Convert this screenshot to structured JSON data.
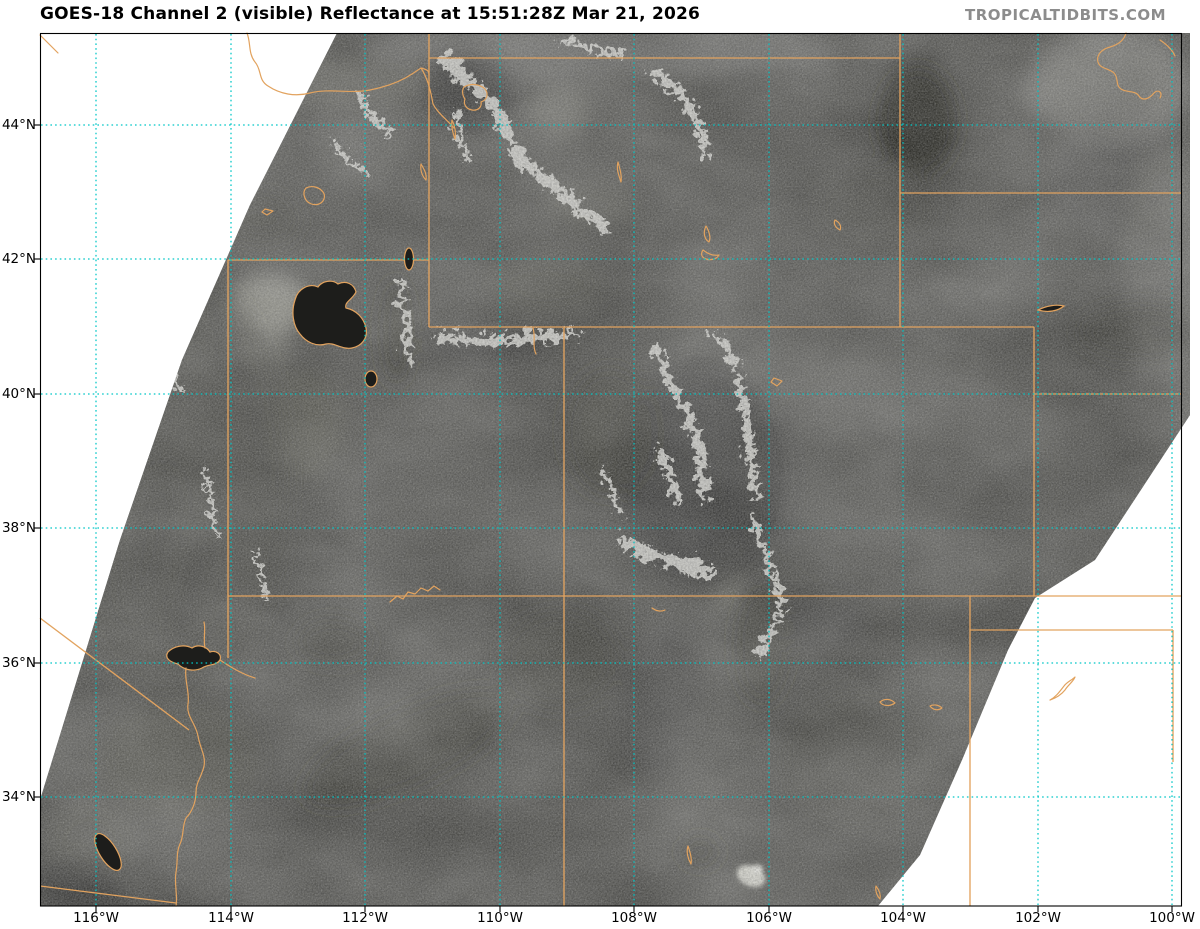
{
  "title": "GOES-18 Channel 2 (visible) Reflectance at 15:51:28Z Mar 21, 2026",
  "watermark": "TROPICALTIDBITS.COM",
  "axes": {
    "lat_ticks": [
      "44°N",
      "42°N",
      "40°N",
      "38°N",
      "36°N",
      "34°N"
    ],
    "lon_ticks": [
      "116°W",
      "114°W",
      "112°W",
      "110°W",
      "108°W",
      "106°W",
      "104°W",
      "102°W",
      "100°W"
    ]
  },
  "colors": {
    "graticule": "#00c6c6",
    "border_lines": "#e2a35f",
    "axis": "#000000",
    "watermark_color": "#8c8c8c",
    "land_dark": "#4a4a47",
    "snow": "#d6d6d2",
    "nodata": "#ffffff"
  }
}
